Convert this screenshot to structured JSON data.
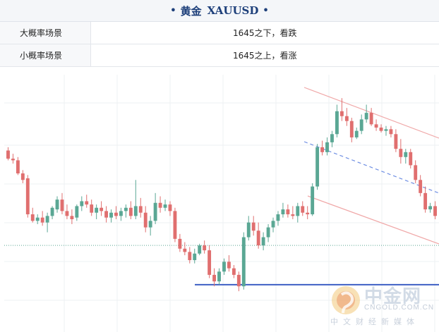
{
  "header": {
    "dot": "•",
    "title": "黄金",
    "code": "XAUUSD"
  },
  "scenarios": [
    {
      "label": "大概率场景",
      "value": "1645之下，看跌"
    },
    {
      "label": "小概率场景",
      "value": "1645之上，看涨"
    }
  ],
  "watermark": {
    "brand": "中金网",
    "url": "CNGOLD.COM.CN",
    "slogan": "中文财经新媒体"
  },
  "colors": {
    "up": "#5aa794",
    "down": "#e06f6f",
    "support_line": "#3d5fc4",
    "channel": "#f0a8a8",
    "channel_mid": "#6f8fe3",
    "dotted_level": "#5aa794",
    "grid": "#eef0f3"
  },
  "chart_data": {
    "type": "candlestick",
    "ylim": [
      0,
      100
    ],
    "candles": [
      [
        78,
        80,
        72,
        73
      ],
      [
        73,
        76,
        70,
        72
      ],
      [
        72,
        74,
        63,
        64
      ],
      [
        64,
        66,
        58,
        60
      ],
      [
        61,
        63,
        37,
        39
      ],
      [
        39,
        43,
        34,
        35
      ],
      [
        35,
        39,
        33,
        37
      ],
      [
        37,
        41,
        32,
        34
      ],
      [
        34,
        40,
        28,
        38
      ],
      [
        38,
        44,
        36,
        43
      ],
      [
        42,
        50,
        40,
        48
      ],
      [
        48,
        52,
        39,
        41
      ],
      [
        41,
        45,
        36,
        38
      ],
      [
        38,
        42,
        33,
        36
      ],
      [
        37,
        45,
        35,
        44
      ],
      [
        44,
        50,
        41,
        47
      ],
      [
        47,
        51,
        43,
        45
      ],
      [
        45,
        48,
        38,
        40
      ],
      [
        40,
        45,
        36,
        43
      ],
      [
        43,
        47,
        38,
        41
      ],
      [
        41,
        44,
        34,
        37
      ],
      [
        37,
        42,
        34,
        40
      ],
      [
        40,
        44,
        36,
        38
      ],
      [
        38,
        43,
        35,
        41
      ],
      [
        41,
        45,
        37,
        43
      ],
      [
        43,
        47,
        36,
        38
      ],
      [
        38,
        60,
        36,
        44
      ],
      [
        44,
        49,
        37,
        40
      ],
      [
        40,
        44,
        28,
        31
      ],
      [
        31,
        38,
        26,
        35
      ],
      [
        35,
        52,
        33,
        46
      ],
      [
        46,
        50,
        40,
        43
      ],
      [
        43,
        48,
        41,
        45
      ],
      [
        45,
        47,
        38,
        41
      ],
      [
        41,
        43,
        22,
        24
      ],
      [
        24,
        27,
        16,
        18
      ],
      [
        18,
        22,
        14,
        16
      ],
      [
        16,
        19,
        9,
        11
      ],
      [
        11,
        18,
        9,
        15
      ],
      [
        15,
        21,
        14,
        20
      ],
      [
        20,
        23,
        15,
        17
      ],
      [
        17,
        20,
        0,
        2
      ],
      [
        2,
        6,
        -5,
        -2
      ],
      [
        -2,
        6,
        -4,
        4
      ],
      [
        4,
        12,
        2,
        10
      ],
      [
        10,
        14,
        4,
        6
      ],
      [
        6,
        8,
        0,
        2
      ],
      [
        2,
        4,
        -8,
        -5
      ],
      [
        -5,
        28,
        -7,
        25
      ],
      [
        25,
        38,
        23,
        34
      ],
      [
        34,
        38,
        26,
        29
      ],
      [
        29,
        34,
        18,
        20
      ],
      [
        20,
        28,
        17,
        25
      ],
      [
        25,
        33,
        22,
        31
      ],
      [
        31,
        37,
        28,
        35
      ],
      [
        35,
        41,
        32,
        39
      ],
      [
        39,
        46,
        37,
        42
      ],
      [
        42,
        45,
        37,
        39
      ],
      [
        39,
        44,
        36,
        38
      ],
      [
        38,
        46,
        34,
        44
      ],
      [
        44,
        47,
        38,
        40
      ],
      [
        40,
        44,
        36,
        39
      ],
      [
        39,
        58,
        38,
        56
      ],
      [
        56,
        82,
        54,
        80
      ],
      [
        80,
        84,
        75,
        77
      ],
      [
        77,
        86,
        75,
        83
      ],
      [
        83,
        90,
        80,
        88
      ],
      [
        88,
        106,
        86,
        102
      ],
      [
        102,
        110,
        96,
        99
      ],
      [
        99,
        104,
        93,
        96
      ],
      [
        96,
        98,
        83,
        86
      ],
      [
        86,
        92,
        85,
        90
      ],
      [
        90,
        100,
        88,
        97
      ],
      [
        97,
        106,
        95,
        101
      ],
      [
        101,
        104,
        93,
        94
      ],
      [
        94,
        97,
        90,
        92
      ],
      [
        92,
        94,
        89,
        90
      ],
      [
        90,
        93,
        87,
        91
      ],
      [
        91,
        93,
        86,
        88
      ],
      [
        88,
        91,
        77,
        79
      ],
      [
        79,
        85,
        70,
        74
      ],
      [
        74,
        79,
        70,
        77
      ],
      [
        77,
        79,
        67,
        69
      ],
      [
        69,
        72,
        58,
        60
      ],
      [
        60,
        63,
        50,
        52
      ],
      [
        52,
        56,
        40,
        42
      ],
      [
        42,
        46,
        40,
        44
      ],
      [
        44,
        47,
        36,
        38
      ]
    ]
  }
}
